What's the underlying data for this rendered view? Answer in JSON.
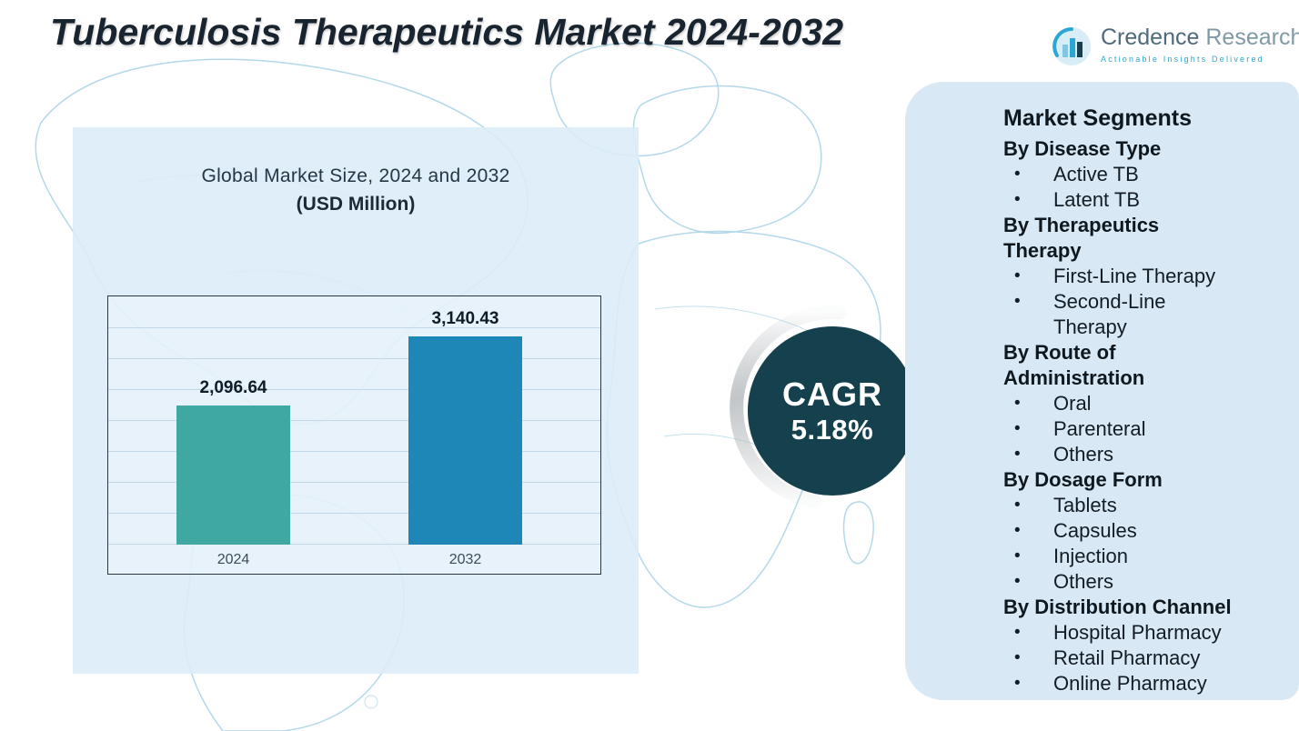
{
  "page": {
    "title": "Tuberculosis Therapeutics Market 2024-2032"
  },
  "logo": {
    "name_primary": "Credence",
    "name_secondary": "Research",
    "tagline": "Actionable Insights Delivered"
  },
  "chart_panel": {
    "title_line": "Global Market Size, 2024 and 2032",
    "unit_line": "(USD Million)"
  },
  "chart_data": {
    "type": "bar",
    "title": "Global Market Size, 2024 and 2032",
    "unit": "USD Million",
    "categories": [
      "2024",
      "2032"
    ],
    "values": [
      2096.64,
      3140.43
    ],
    "value_labels": [
      "2,096.64",
      "3,140.43"
    ],
    "bar_colors": [
      "#3FA8A2",
      "#1E87B7"
    ],
    "ylim": [
      0,
      3500
    ],
    "grid": "horizontal",
    "legend": "none"
  },
  "cagr": {
    "label": "CAGR",
    "value": "5.18%"
  },
  "segments": {
    "title": "Market Segments",
    "groups": [
      {
        "heading": "By Disease Type",
        "items": [
          "Active TB",
          "Latent TB"
        ]
      },
      {
        "heading": "By Therapeutics Therapy",
        "items": [
          "First-Line Therapy",
          "Second-Line Therapy"
        ]
      },
      {
        "heading": "By Route of Administration",
        "items": [
          "Oral",
          "Parenteral",
          "Others"
        ]
      },
      {
        "heading": "By Dosage Form",
        "items": [
          "Tablets",
          "Capsules",
          "Injection",
          "Others"
        ]
      },
      {
        "heading": "By Distribution Channel",
        "items": [
          "Hospital Pharmacy",
          "Retail Pharmacy",
          "Online Pharmacy"
        ]
      }
    ]
  },
  "colors": {
    "bar_2024": "#3FA8A2",
    "bar_2032": "#1E87B7",
    "cagr_circle": "#15404E",
    "panel_blue": "#DBECF7",
    "map_line": "#B3D8EA",
    "brand_teal": "#2BA7CD"
  }
}
